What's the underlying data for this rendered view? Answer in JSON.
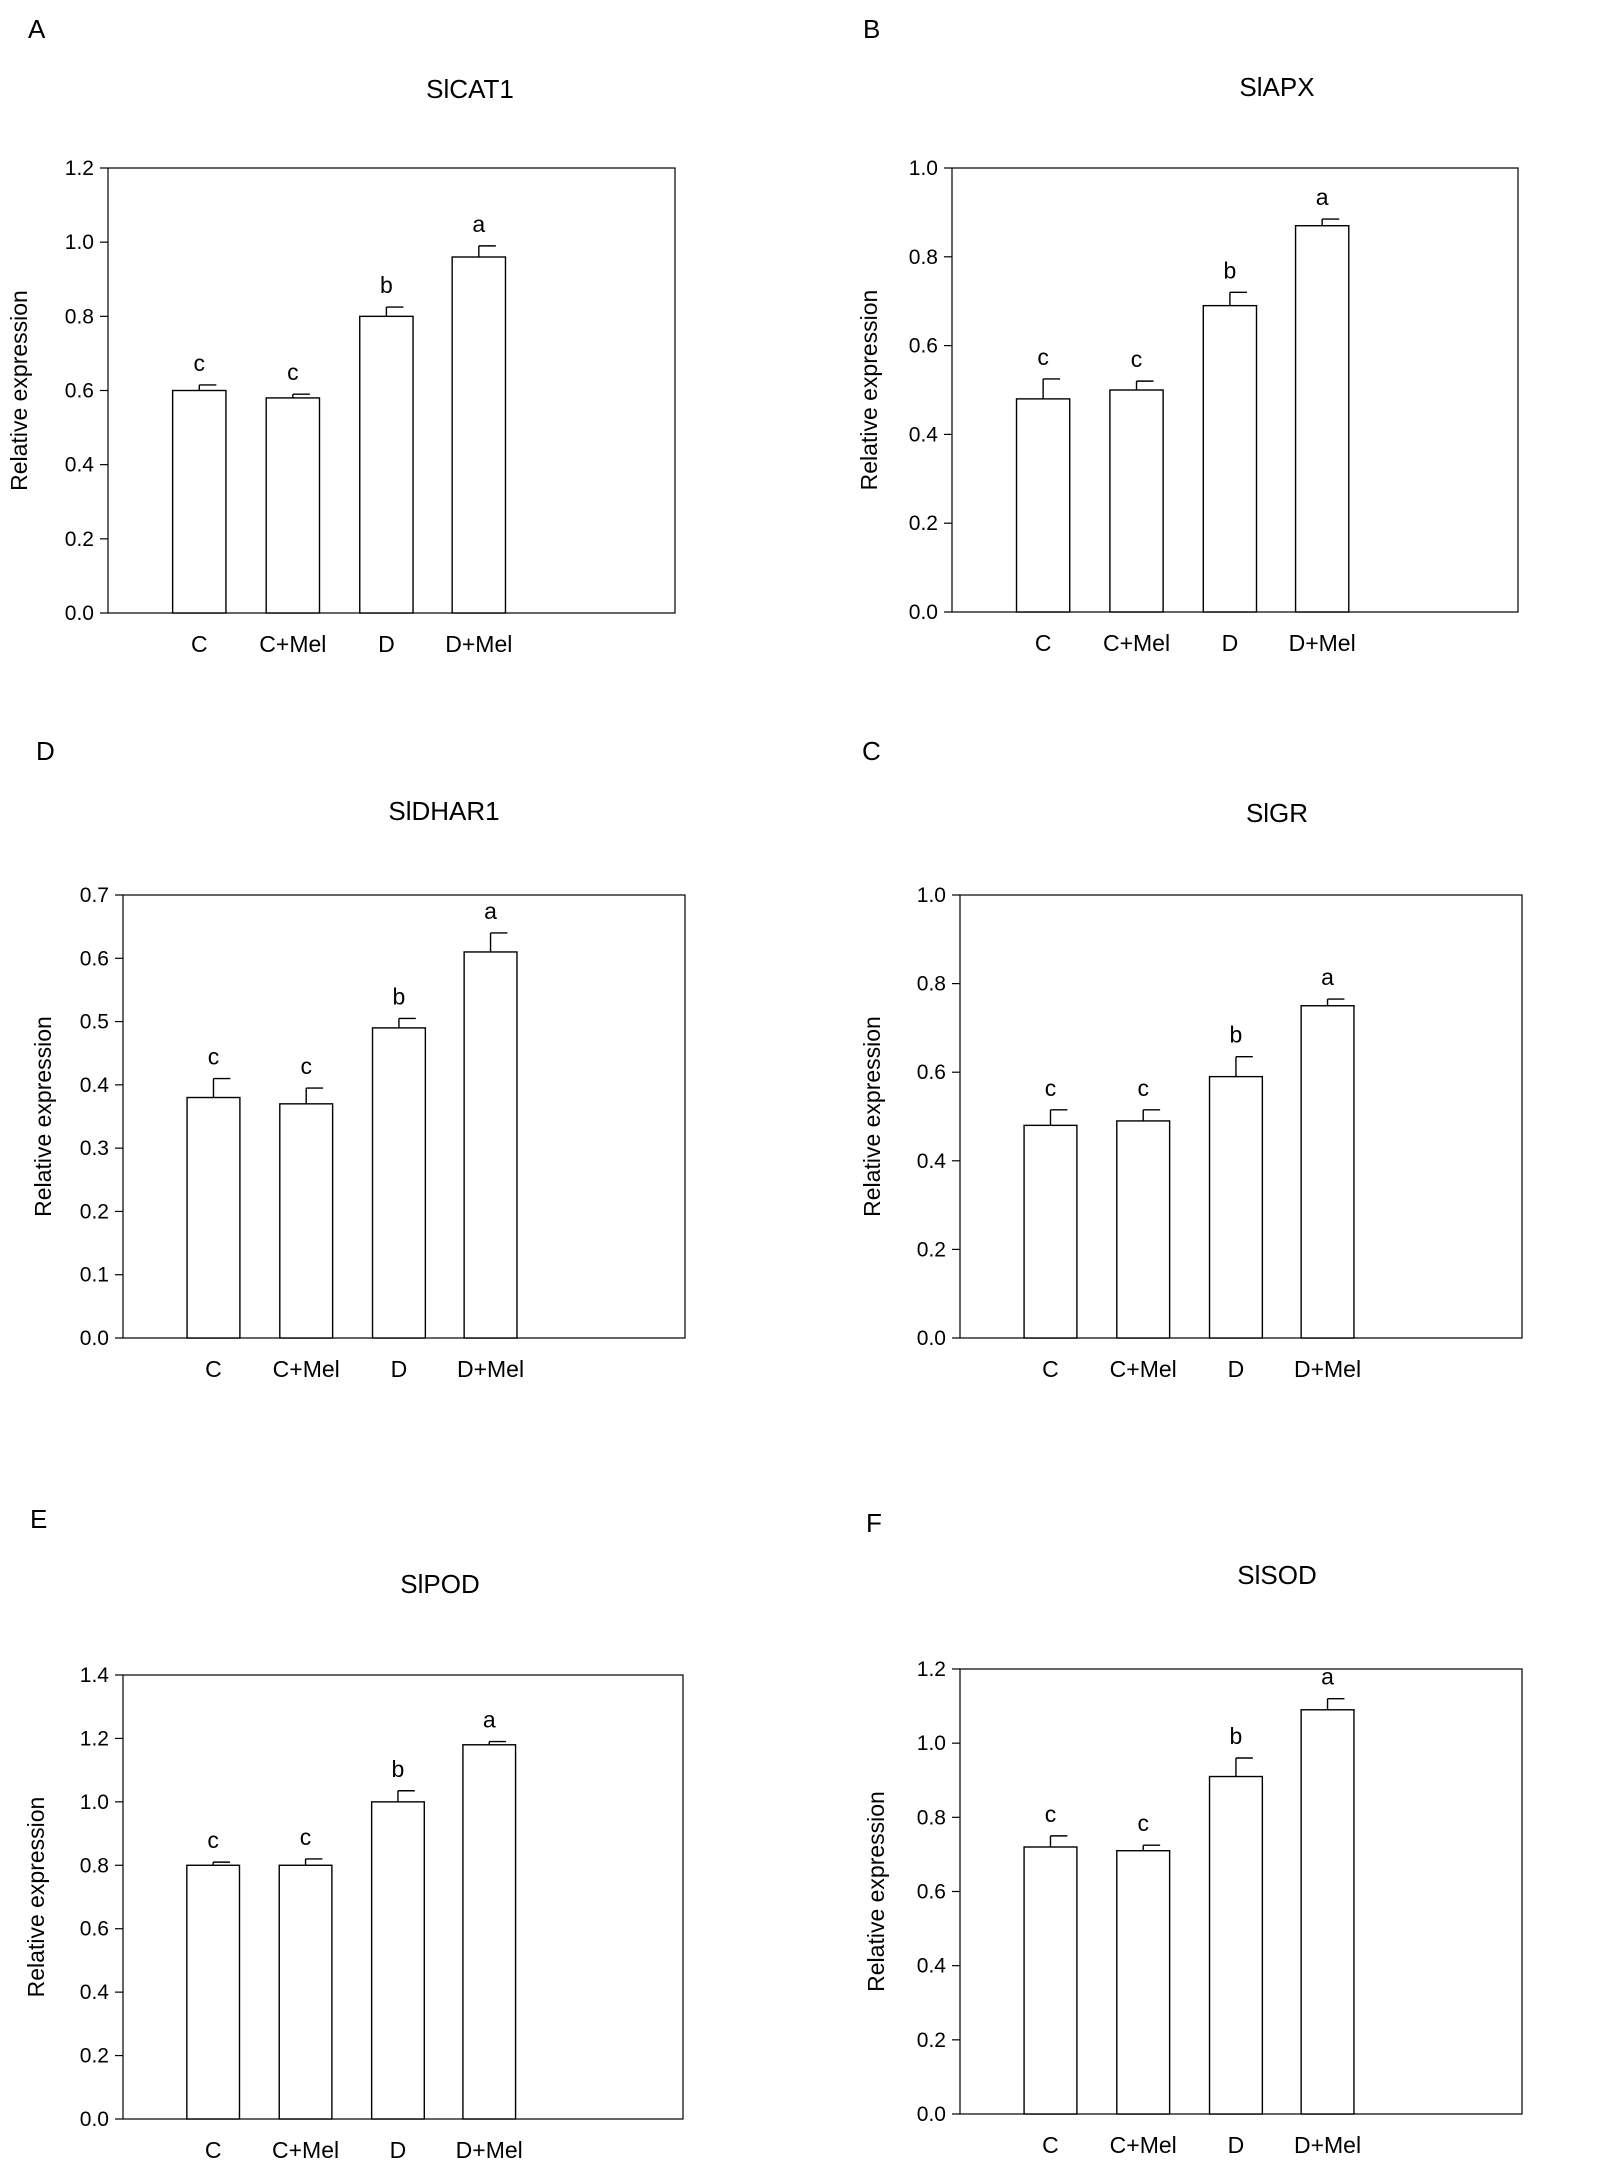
{
  "figure": {
    "y_axis_label": "Relative expression"
  },
  "chart_data": [
    {
      "type": "bar",
      "panel": "A",
      "title": "SlCAT1",
      "xlabel": "",
      "ylabel": "Relative expression",
      "categories": [
        "C",
        "C+Mel",
        "D",
        "D+Mel"
      ],
      "values": [
        0.6,
        0.58,
        0.8,
        0.96
      ],
      "errors": [
        0.015,
        0.01,
        0.025,
        0.03
      ],
      "significance": [
        "c",
        "c",
        "b",
        "a"
      ],
      "ylim": [
        0,
        1.2
      ],
      "yticks": [
        "0.0",
        "0.2",
        "0.4",
        "0.6",
        "0.8",
        "1.0",
        "1.2"
      ],
      "grid": false
    },
    {
      "type": "bar",
      "panel": "B",
      "title": "SlAPX",
      "xlabel": "",
      "ylabel": "Relative expression",
      "categories": [
        "C",
        "C+Mel",
        "D",
        "D+Mel"
      ],
      "values": [
        0.48,
        0.5,
        0.69,
        0.87
      ],
      "errors": [
        0.045,
        0.02,
        0.03,
        0.015
      ],
      "significance": [
        "c",
        "c",
        "b",
        "a"
      ],
      "ylim": [
        0,
        1.0
      ],
      "yticks": [
        "0.0",
        "0.2",
        "0.4",
        "0.6",
        "0.8",
        "1.0"
      ],
      "grid": false
    },
    {
      "type": "bar",
      "panel": "D",
      "title": "SlDHAR1",
      "xlabel": "",
      "ylabel": "Relative expression",
      "categories": [
        "C",
        "C+Mel",
        "D",
        "D+Mel"
      ],
      "values": [
        0.38,
        0.37,
        0.49,
        0.61
      ],
      "errors": [
        0.03,
        0.025,
        0.015,
        0.03
      ],
      "significance": [
        "c",
        "c",
        "b",
        "a"
      ],
      "ylim": [
        0,
        0.7
      ],
      "yticks": [
        "0.0",
        "0.1",
        "0.2",
        "0.3",
        "0.4",
        "0.5",
        "0.6",
        "0.7"
      ],
      "grid": false
    },
    {
      "type": "bar",
      "panel": "C",
      "title": "SlGR",
      "xlabel": "",
      "ylabel": "Relative expression",
      "categories": [
        "C",
        "C+Mel",
        "D",
        "D+Mel"
      ],
      "values": [
        0.48,
        0.49,
        0.59,
        0.75
      ],
      "errors": [
        0.035,
        0.025,
        0.045,
        0.015
      ],
      "significance": [
        "c",
        "c",
        "b",
        "a"
      ],
      "ylim": [
        0,
        1.0
      ],
      "yticks": [
        "0.0",
        "0.2",
        "0.4",
        "0.6",
        "0.8",
        "1.0"
      ],
      "grid": false
    },
    {
      "type": "bar",
      "panel": "E",
      "title": "SlPOD",
      "xlabel": "",
      "ylabel": "Relative expression",
      "categories": [
        "C",
        "C+Mel",
        "D",
        "D+Mel"
      ],
      "values": [
        0.8,
        0.8,
        1.0,
        1.18
      ],
      "errors": [
        0.01,
        0.02,
        0.035,
        0.01
      ],
      "significance": [
        "c",
        "c",
        "b",
        "a"
      ],
      "ylim": [
        0,
        1.4
      ],
      "yticks": [
        "0.0",
        "0.2",
        "0.4",
        "0.6",
        "0.8",
        "1.0",
        "1.2",
        "1.4"
      ],
      "grid": false
    },
    {
      "type": "bar",
      "panel": "F",
      "title": "SlSOD",
      "xlabel": "",
      "ylabel": "Relative expression",
      "categories": [
        "C",
        "C+Mel",
        "D",
        "D+Mel"
      ],
      "values": [
        0.72,
        0.71,
        0.91,
        1.09
      ],
      "errors": [
        0.03,
        0.015,
        0.05,
        0.03
      ],
      "significance": [
        "c",
        "c",
        "b",
        "a"
      ],
      "ylim": [
        0,
        1.2
      ],
      "yticks": [
        "0.0",
        "0.2",
        "0.4",
        "0.6",
        "0.8",
        "1.0",
        "1.2"
      ],
      "grid": false
    }
  ]
}
